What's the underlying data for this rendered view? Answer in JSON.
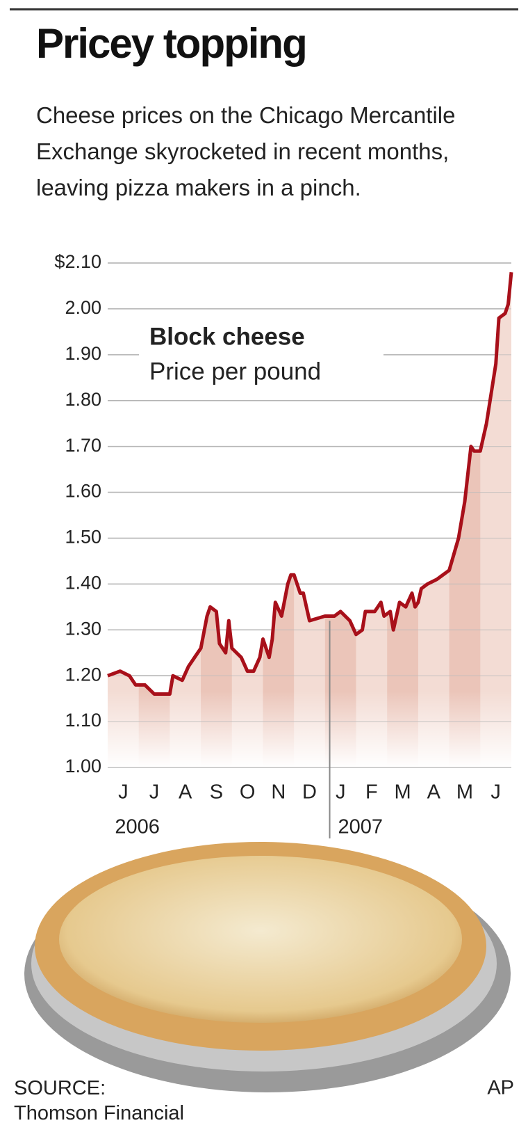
{
  "chart_data": {
    "type": "line",
    "title": "Pricey topping",
    "subtitle": "Cheese prices on the Chicago Mercantile Exchange skyrocketed in recent months, leaving pizza makers in a pinch.",
    "annotation_title": "Block cheese",
    "annotation_subtitle": "Price per pound",
    "source": "SOURCE: Thomson Financial",
    "credit": "AP",
    "year_labels": [
      "2006",
      "2007"
    ],
    "xlim": [
      0,
      13
    ],
    "xticks": [
      {
        "value": 0.5,
        "label": "J"
      },
      {
        "value": 1.5,
        "label": "J"
      },
      {
        "value": 2.5,
        "label": "A"
      },
      {
        "value": 3.5,
        "label": "S"
      },
      {
        "value": 4.5,
        "label": "O"
      },
      {
        "value": 5.5,
        "label": "N"
      },
      {
        "value": 6.5,
        "label": "D"
      },
      {
        "value": 7.5,
        "label": "J"
      },
      {
        "value": 8.5,
        "label": "F"
      },
      {
        "value": 9.5,
        "label": "M"
      },
      {
        "value": 10.5,
        "label": "A"
      },
      {
        "value": 11.5,
        "label": "M"
      },
      {
        "value": 12.5,
        "label": "J"
      }
    ],
    "ylim": [
      1.0,
      2.1
    ],
    "yticks": [
      {
        "value": 1.0,
        "label": "1.00"
      },
      {
        "value": 1.1,
        "label": "1.10"
      },
      {
        "value": 1.2,
        "label": "1.20"
      },
      {
        "value": 1.3,
        "label": "1.30"
      },
      {
        "value": 1.4,
        "label": "1.40"
      },
      {
        "value": 1.5,
        "label": "1.50"
      },
      {
        "value": 1.6,
        "label": "1.60"
      },
      {
        "value": 1.7,
        "label": "1.70"
      },
      {
        "value": 1.8,
        "label": "1.80"
      },
      {
        "value": 1.9,
        "label": "1.90"
      },
      {
        "value": 2.0,
        "label": "2.00"
      },
      {
        "value": 2.1,
        "label": "$2.10"
      }
    ],
    "grid": true,
    "year_divider": 7.15,
    "x": [
      0,
      0.4,
      0.7,
      0.9,
      1.2,
      1.5,
      1.9,
      2.0,
      2.1,
      2.4,
      2.6,
      2.8,
      3.0,
      3.2,
      3.3,
      3.5,
      3.6,
      3.8,
      3.9,
      4.0,
      4.3,
      4.5,
      4.7,
      4.9,
      5.0,
      5.2,
      5.3,
      5.4,
      5.6,
      5.8,
      5.9,
      6.0,
      6.2,
      6.3,
      6.5,
      7.0,
      7.3,
      7.5,
      7.8,
      8.0,
      8.2,
      8.3,
      8.6,
      8.8,
      8.9,
      9.1,
      9.2,
      9.4,
      9.6,
      9.8,
      9.9,
      10.0,
      10.1,
      10.3,
      10.6,
      11.0,
      11.3,
      11.5,
      11.7,
      11.8,
      12.0,
      12.2,
      12.5,
      12.6,
      12.8,
      12.9,
      13.0
    ],
    "series": [
      {
        "name": "Block cheese",
        "color": "#a8101a",
        "fill": "#f3dcd4",
        "stripe": "#ebc5b9",
        "values": [
          1.2,
          1.21,
          1.2,
          1.18,
          1.18,
          1.16,
          1.16,
          1.16,
          1.2,
          1.19,
          1.22,
          1.24,
          1.26,
          1.33,
          1.35,
          1.34,
          1.27,
          1.25,
          1.32,
          1.26,
          1.24,
          1.21,
          1.21,
          1.24,
          1.28,
          1.24,
          1.28,
          1.36,
          1.33,
          1.4,
          1.42,
          1.42,
          1.38,
          1.38,
          1.32,
          1.33,
          1.33,
          1.34,
          1.32,
          1.29,
          1.3,
          1.34,
          1.34,
          1.36,
          1.33,
          1.34,
          1.3,
          1.36,
          1.35,
          1.38,
          1.35,
          1.36,
          1.39,
          1.4,
          1.41,
          1.43,
          1.5,
          1.58,
          1.7,
          1.69,
          1.69,
          1.75,
          1.88,
          1.98,
          1.99,
          2.01,
          2.08
        ]
      }
    ]
  }
}
